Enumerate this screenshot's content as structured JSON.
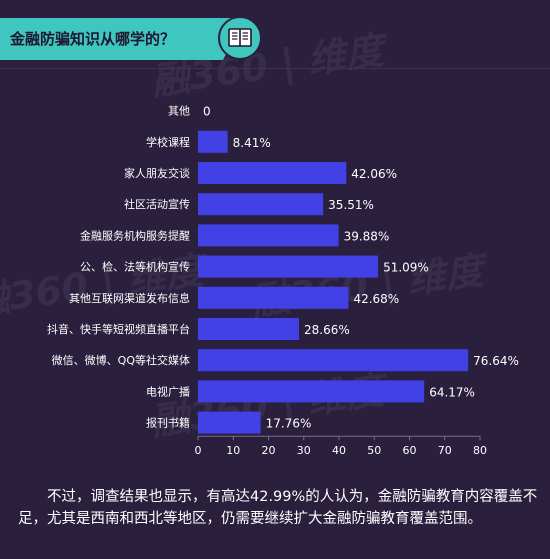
{
  "header": {
    "title": "金融防骗知识从哪学的？",
    "icon": "book-icon"
  },
  "watermark": "融360 | 维度",
  "chart_data": {
    "type": "bar",
    "orientation": "horizontal",
    "categories": [
      "其他",
      "学校课程",
      "家人朋友交谈",
      "社区活动宣传",
      "金融服务机构服务提醒",
      "公、检、法等机构宣传",
      "其他互联网渠道发布信息",
      "抖音、快手等短视频直播平台",
      "微信、微博、QQ等社交媒体",
      "电视广播",
      "报刊书籍"
    ],
    "values": [
      0,
      8.41,
      42.06,
      35.51,
      39.88,
      51.09,
      42.68,
      28.66,
      76.64,
      64.17,
      17.76
    ],
    "data_labels": [
      "0",
      "8.41%",
      "42.06%",
      "35.51%",
      "39.88%",
      "51.09%",
      "42.68%",
      "28.66%",
      "76.64%",
      "64.17%",
      "17.76%"
    ],
    "x_ticks": [
      0,
      10,
      20,
      30,
      40,
      50,
      60,
      70,
      80
    ],
    "xlim": [
      0,
      80
    ],
    "bar_color": "#4141e6",
    "grid": false,
    "legend": "none"
  },
  "note": "不过，调查结果也显示，有高达42.99%的人认为，金融防骗教育内容覆盖不足，尤其是西南和西北等地区，仍需要继续扩大金融防骗教育覆盖范围。",
  "colors": {
    "background": "#2b1f3e",
    "header": "#3fc6be",
    "text": "#ffffff",
    "bar": "#4141e6"
  }
}
